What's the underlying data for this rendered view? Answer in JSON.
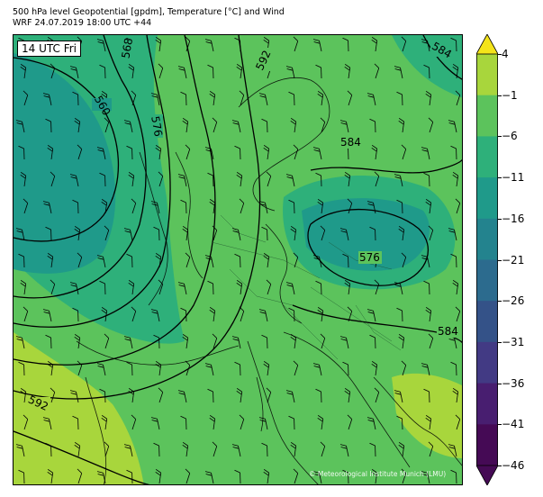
{
  "header": {
    "title_line1": "500 hPa level Geopotential [gpdm], Temperature [°C] and Wind",
    "title_line2": "WRF 24.07.2019 18:00 UTC +44"
  },
  "map": {
    "time_label": "14 UTC Fri",
    "copyright": "© Meteorological Institute Munich (LMU)",
    "contour_labels": [
      "560",
      "568",
      "576",
      "592",
      "584",
      "584",
      "576",
      "584",
      "592"
    ]
  },
  "colorbar": {
    "ticks": [
      "4",
      "−1",
      "−6",
      "−11",
      "−16",
      "−21",
      "−26",
      "−31",
      "−36",
      "−41",
      "−46"
    ],
    "colors": [
      "#f4e41a",
      "#a8d63c",
      "#5cc35c",
      "#2eb07a",
      "#1f9a8a",
      "#23838e",
      "#2c6b8e",
      "#345288",
      "#423a84",
      "#481e70",
      "#450a55"
    ]
  }
}
